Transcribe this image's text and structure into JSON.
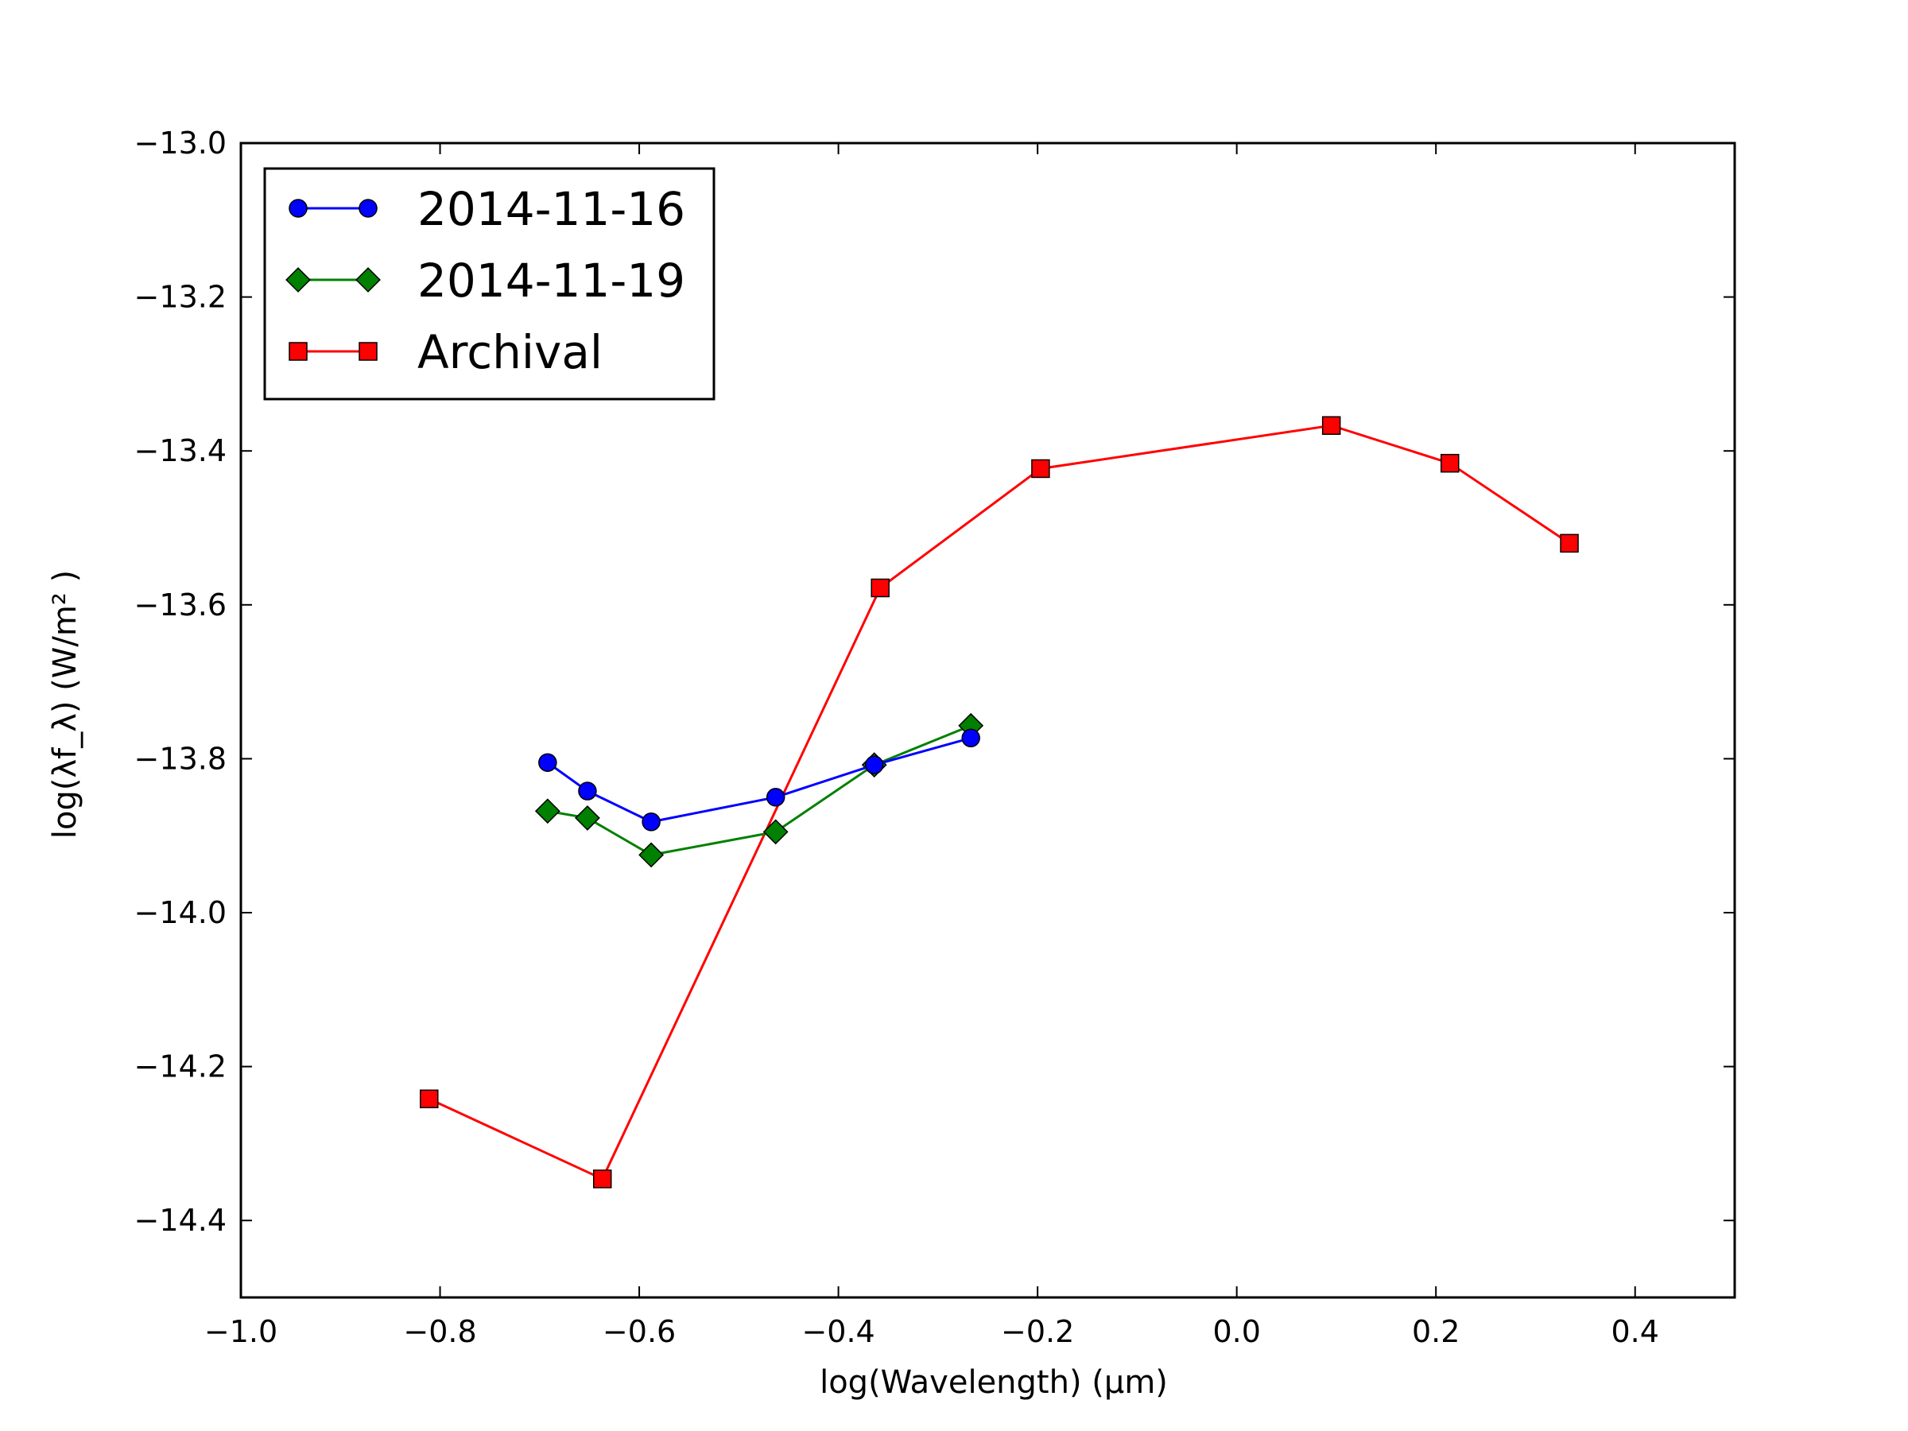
{
  "chart_data": {
    "type": "line",
    "xlabel": "log(Wavelength) (μm)",
    "ylabel": "log(λf_λ) (W/m² )",
    "xlim": [
      -1.0,
      0.5
    ],
    "ylim": [
      -14.5,
      -13.0
    ],
    "xticks": [
      -1.0,
      -0.8,
      -0.6,
      -0.4,
      -0.2,
      0.0,
      0.2,
      0.4
    ],
    "xtick_labels": [
      "−1.0",
      "−0.8",
      "−0.6",
      "−0.4",
      "−0.2",
      "0.0",
      "0.2",
      "0.4"
    ],
    "yticks": [
      -13.0,
      -13.2,
      -13.4,
      -13.6,
      -13.8,
      -14.0,
      -14.2,
      -14.4
    ],
    "ytick_labels": [
      "−13.0",
      "−13.2",
      "−13.4",
      "−13.6",
      "−13.8",
      "−14.0",
      "−14.2",
      "−14.4"
    ],
    "grid": false,
    "legend_position": "top-left",
    "series": [
      {
        "name": "2014-11-16",
        "color": "#0000ff",
        "marker": "circle",
        "x": [
          -0.692,
          -0.652,
          -0.588,
          -0.463,
          -0.364,
          -0.267
        ],
        "y": [
          -13.805,
          -13.842,
          -13.882,
          -13.85,
          -13.808,
          -13.773
        ]
      },
      {
        "name": "2014-11-19",
        "color": "#008000",
        "marker": "diamond",
        "x": [
          -0.692,
          -0.652,
          -0.588,
          -0.463,
          -0.364,
          -0.267
        ],
        "y": [
          -13.868,
          -13.877,
          -13.925,
          -13.895,
          -13.808,
          -13.757
        ]
      },
      {
        "name": "Archival",
        "color": "#ff0000",
        "marker": "square",
        "x": [
          -0.811,
          -0.637,
          -0.358,
          -0.197,
          0.095,
          0.214,
          0.334
        ],
        "y": [
          -14.242,
          -14.346,
          -13.578,
          -13.423,
          -13.367,
          -13.416,
          -13.52
        ]
      }
    ]
  }
}
